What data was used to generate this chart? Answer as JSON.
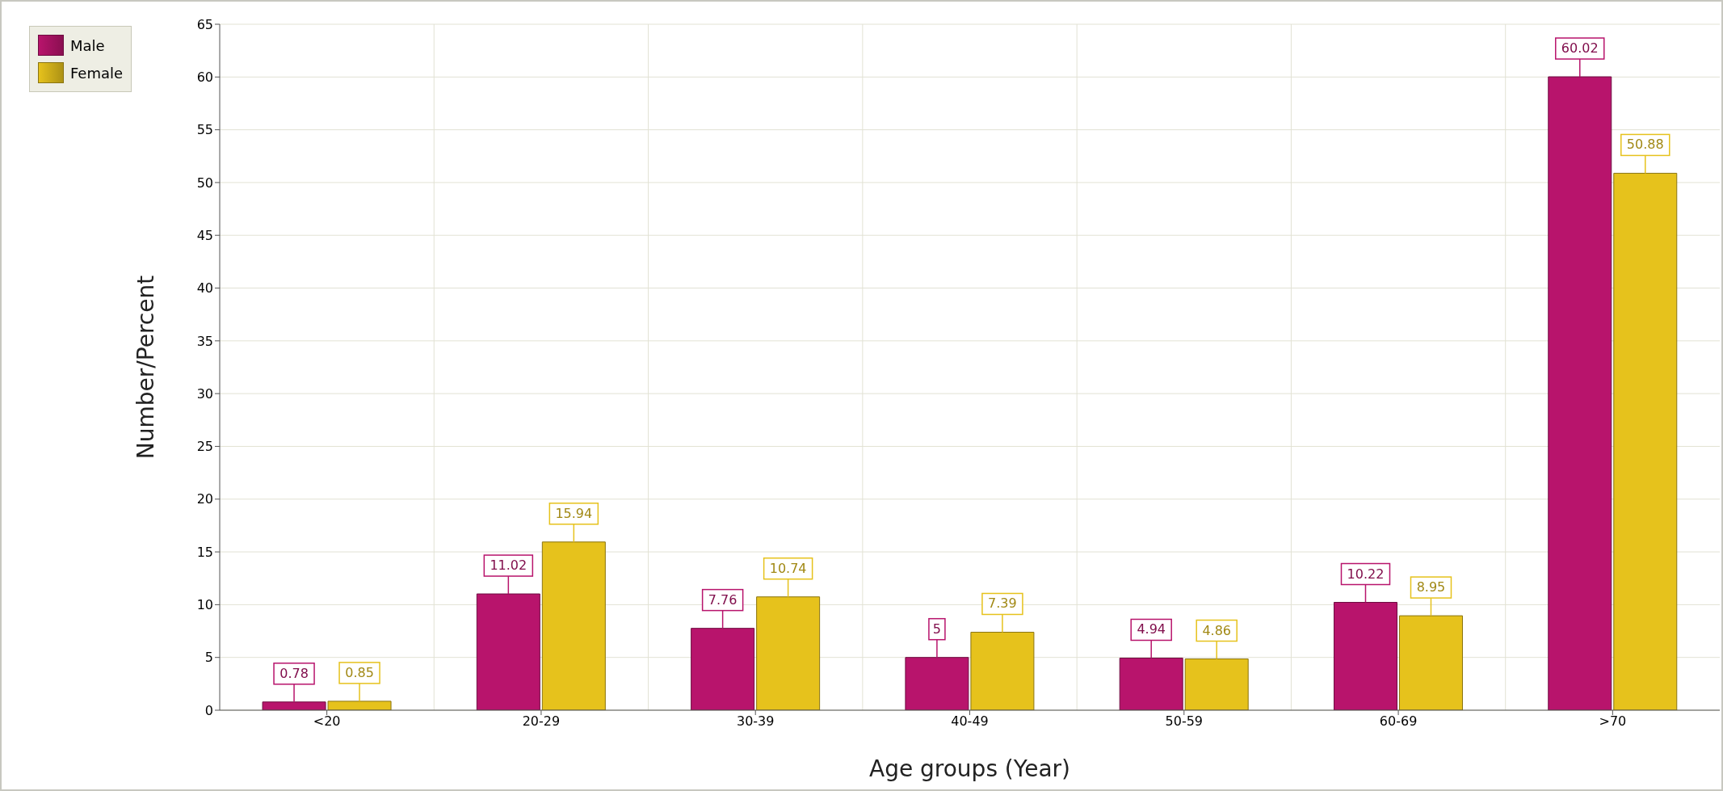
{
  "chart_data": {
    "type": "bar",
    "xlabel": "Age groups (Year)",
    "ylabel": "Number/Percent",
    "categories": [
      "<20",
      "20-29",
      "30-39",
      "40-49",
      "50-59",
      "60-69",
      ">70"
    ],
    "series": [
      {
        "name": "Male",
        "color": "#b8146c",
        "values": [
          0.78,
          11.02,
          7.76,
          5,
          4.94,
          10.22,
          60.02
        ]
      },
      {
        "name": "Female",
        "color": "#e6c21c",
        "values": [
          0.85,
          15.94,
          10.74,
          7.39,
          4.86,
          8.95,
          50.88
        ]
      }
    ],
    "ylim": [
      0,
      65
    ],
    "yticks": [
      0,
      5,
      10,
      15,
      20,
      25,
      30,
      35,
      40,
      45,
      50,
      55,
      60,
      65
    ],
    "grid": true,
    "legend": "top left",
    "data_labels": true
  }
}
